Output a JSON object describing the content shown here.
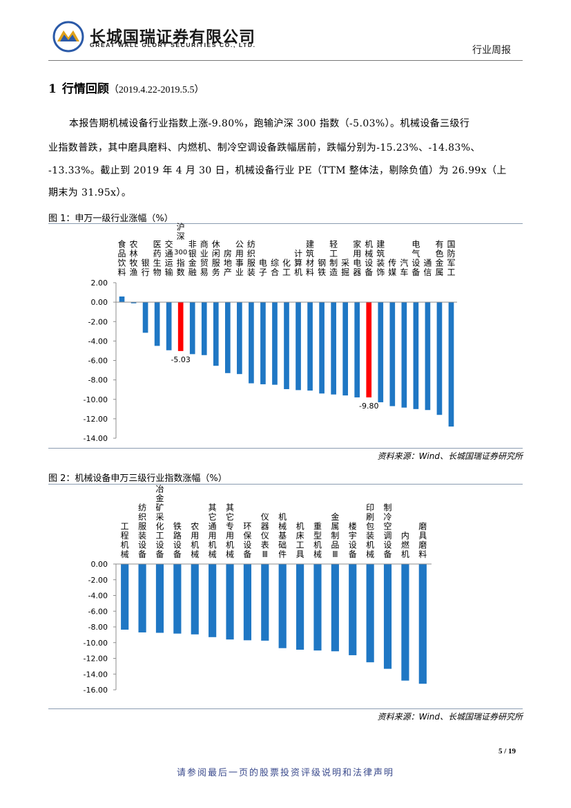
{
  "header": {
    "company_cn": "长城国瑞证券有限公司",
    "company_en": "GREAT WALL GLORY SECURITIES CO., LTD.",
    "report_type": "行业周报",
    "logo_colors": {
      "blue": "#2b5aa8",
      "gold": "#e0a21c"
    }
  },
  "section": {
    "number": "1",
    "title": "行情回顾",
    "range": "（2019.4.22-2019.5.5）"
  },
  "paragraph": {
    "lines": [
      "本报告期机械设备行业指数上涨-9.80%，跑输沪深 300 指数（-5.03%）。机械设备三级行",
      "业指数普跌，其中磨具磨料、内燃机、制冷空调设备跌幅居前，跌幅分别为-15.23%、-14.83%、",
      "-13.33%。截止到 2019 年 4 月 30 日，机械设备行业 PE（TTM 整体法，剔除负值）为 26.99x（上",
      "期末为 31.95x）。"
    ]
  },
  "figure1": {
    "title": "图 1：申万一级行业涨幅（%）",
    "source": "资料来源：Wind、长城国瑞证券研究所"
  },
  "figure2": {
    "title": "图 2：机械设备申万三级行业指数涨幅（%）",
    "source": "资料来源：Wind、长城国瑞证券研究所"
  },
  "chart_data": [
    {
      "type": "bar",
      "title": "",
      "xlabel": "",
      "ylabel": "",
      "ylim": [
        -14,
        2
      ],
      "yticks": [
        "2.00",
        "0.00",
        "-2.00",
        "-4.00",
        "-6.00",
        "-8.00",
        "-10.00",
        "-12.00",
        "-14.00"
      ],
      "categories": [
        "食品饮料",
        "农林牧渔",
        "银行",
        "医药生物",
        "交通运输",
        "沪深300指数",
        "非银金融",
        "商业贸易",
        "休闲服务",
        "房地产",
        "公用事业",
        "纺织服装",
        "电子",
        "综合",
        "化工",
        "计算机",
        "建筑材料",
        "钢铁",
        "轻工制造",
        "采掘",
        "家用电器",
        "机械设备",
        "建筑装饰",
        "传媒",
        "汽车",
        "电气设备",
        "通信",
        "有色金属",
        "国防军工"
      ],
      "values": [
        0.58,
        -0.12,
        -3.15,
        -4.5,
        -4.95,
        -5.03,
        -5.35,
        -5.45,
        -6.55,
        -7.3,
        -7.4,
        -8.35,
        -8.45,
        -8.5,
        -8.95,
        -9.05,
        -9.1,
        -9.4,
        -9.5,
        -9.6,
        -9.8,
        -9.8,
        -10.3,
        -10.7,
        -10.85,
        -11.0,
        -11.1,
        -11.6,
        -12.8
      ],
      "highlight": [
        5,
        21
      ],
      "data_labels": [
        {
          "index": 5,
          "text": "-5.03"
        },
        {
          "index": 21,
          "text": "-9.80"
        }
      ],
      "colors": {
        "bar": "#1f77c4",
        "highlight": "#ff0000"
      },
      "grid": false,
      "legend": "none"
    },
    {
      "type": "bar",
      "title": "",
      "xlabel": "",
      "ylabel": "",
      "ylim": [
        -16,
        0
      ],
      "yticks": [
        "0.00",
        "-2.00",
        "-4.00",
        "-6.00",
        "-8.00",
        "-10.00",
        "-12.00",
        "-14.00",
        "-16.00"
      ],
      "categories": [
        "工程机械",
        "纺织服装设备",
        "冶金矿采化工设备",
        "铁路设备",
        "农用机械",
        "其它通用机械",
        "其它专用机械",
        "环保设备",
        "仪器仪表Ⅲ",
        "机械基础件",
        "机床工具",
        "重型机械",
        "金属制品Ⅲ",
        "楼宇设备",
        "印刷包装机械",
        "制冷空调设备",
        "内燃机",
        "磨具磨料"
      ],
      "values": [
        -8.35,
        -8.7,
        -8.75,
        -8.85,
        -8.95,
        -9.3,
        -9.6,
        -9.7,
        -9.75,
        -10.7,
        -10.9,
        -11.0,
        -11.1,
        -11.6,
        -12.5,
        -13.33,
        -14.83,
        -15.23
      ],
      "colors": {
        "bar": "#1f77c4"
      },
      "grid": false,
      "legend": "none"
    }
  ],
  "footer": {
    "page": "5 / 19",
    "note": "请参阅最后一页的股票投资评级说明和法律声明"
  }
}
